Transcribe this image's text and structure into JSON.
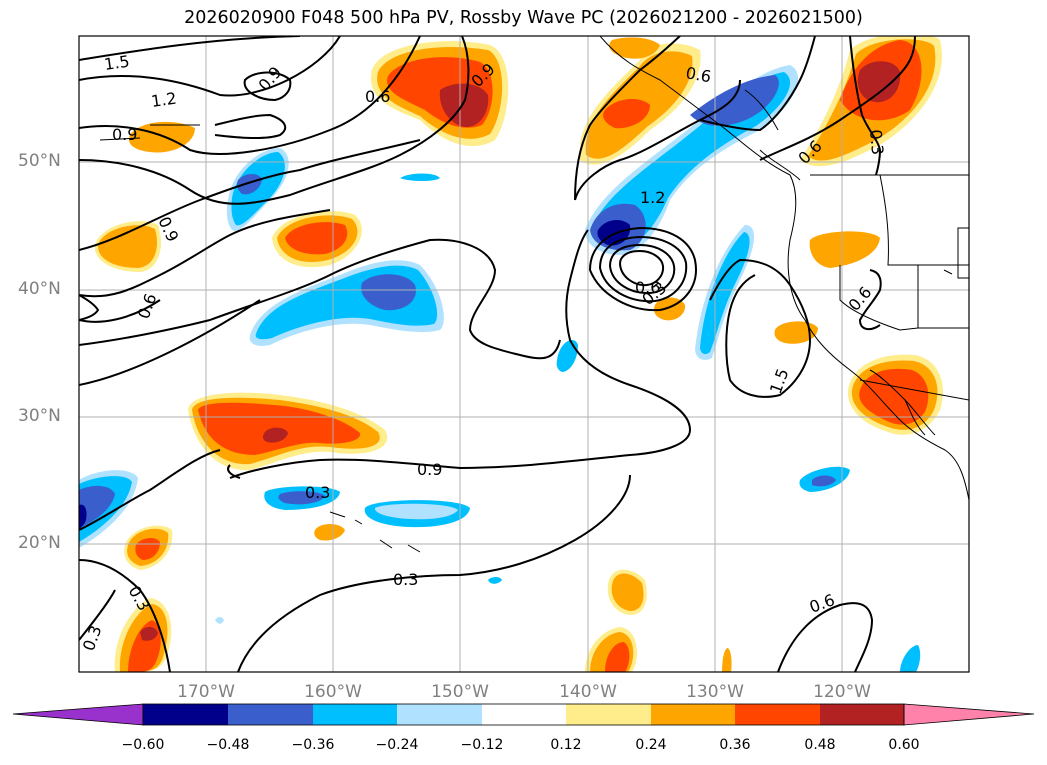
{
  "title": "2026020900 F048 500 hPa PV, Rossby Wave PC (2026021200 - 2026021500)",
  "map": {
    "lat_labels": [
      {
        "value": "50°N",
        "lat": 50
      },
      {
        "value": "40°N",
        "lat": 40
      },
      {
        "value": "30°N",
        "lat": 30
      },
      {
        "value": "20°N",
        "lat": 20
      }
    ],
    "lon_labels": [
      {
        "value": "170°W",
        "lon": -170
      },
      {
        "value": "160°W",
        "lon": -160
      },
      {
        "value": "150°W",
        "lon": -150
      },
      {
        "value": "140°W",
        "lon": -140
      },
      {
        "value": "130°W",
        "lon": -130
      },
      {
        "value": "120°W",
        "lon": -120
      }
    ],
    "extent": {
      "lon_min": -180,
      "lon_max": -110,
      "lat_min": 10,
      "lat_max": 60
    },
    "contour_labels": [
      "1.5",
      "1.2",
      "0.9",
      "0.9",
      "0.9",
      "0.6",
      "0.6",
      "0.9",
      "0.6",
      "1.2",
      "0.6",
      "0.3",
      "0.6",
      "0.3",
      "0.6",
      "1.5",
      "0.9",
      "0.3",
      "0.3",
      "0.6",
      "0.3",
      "0.3",
      "0.6",
      "0.9"
    ]
  },
  "colorbar": {
    "ticks": [
      "−0.60",
      "−0.48",
      "−0.36",
      "−0.24",
      "−0.12",
      "0.12",
      "0.24",
      "0.36",
      "0.48",
      "0.60"
    ],
    "colors": [
      "#9932cc",
      "#00008b",
      "#3a5fcd",
      "#00bfff",
      "#b0e2ff",
      "#ffffff",
      "#ffec8b",
      "#ffa500",
      "#ff4500",
      "#b22222",
      "#ff82ab"
    ]
  },
  "colors": {
    "neg_strong": "#00008b",
    "neg_mid": "#3a5fcd",
    "neg_light": "#00bfff",
    "neg_pale": "#b0e2ff",
    "pos_pale": "#ffec8b",
    "pos_light": "#ffa500",
    "pos_mid": "#ff4500",
    "pos_strong": "#b22222",
    "grid": "#b0b0b0"
  }
}
